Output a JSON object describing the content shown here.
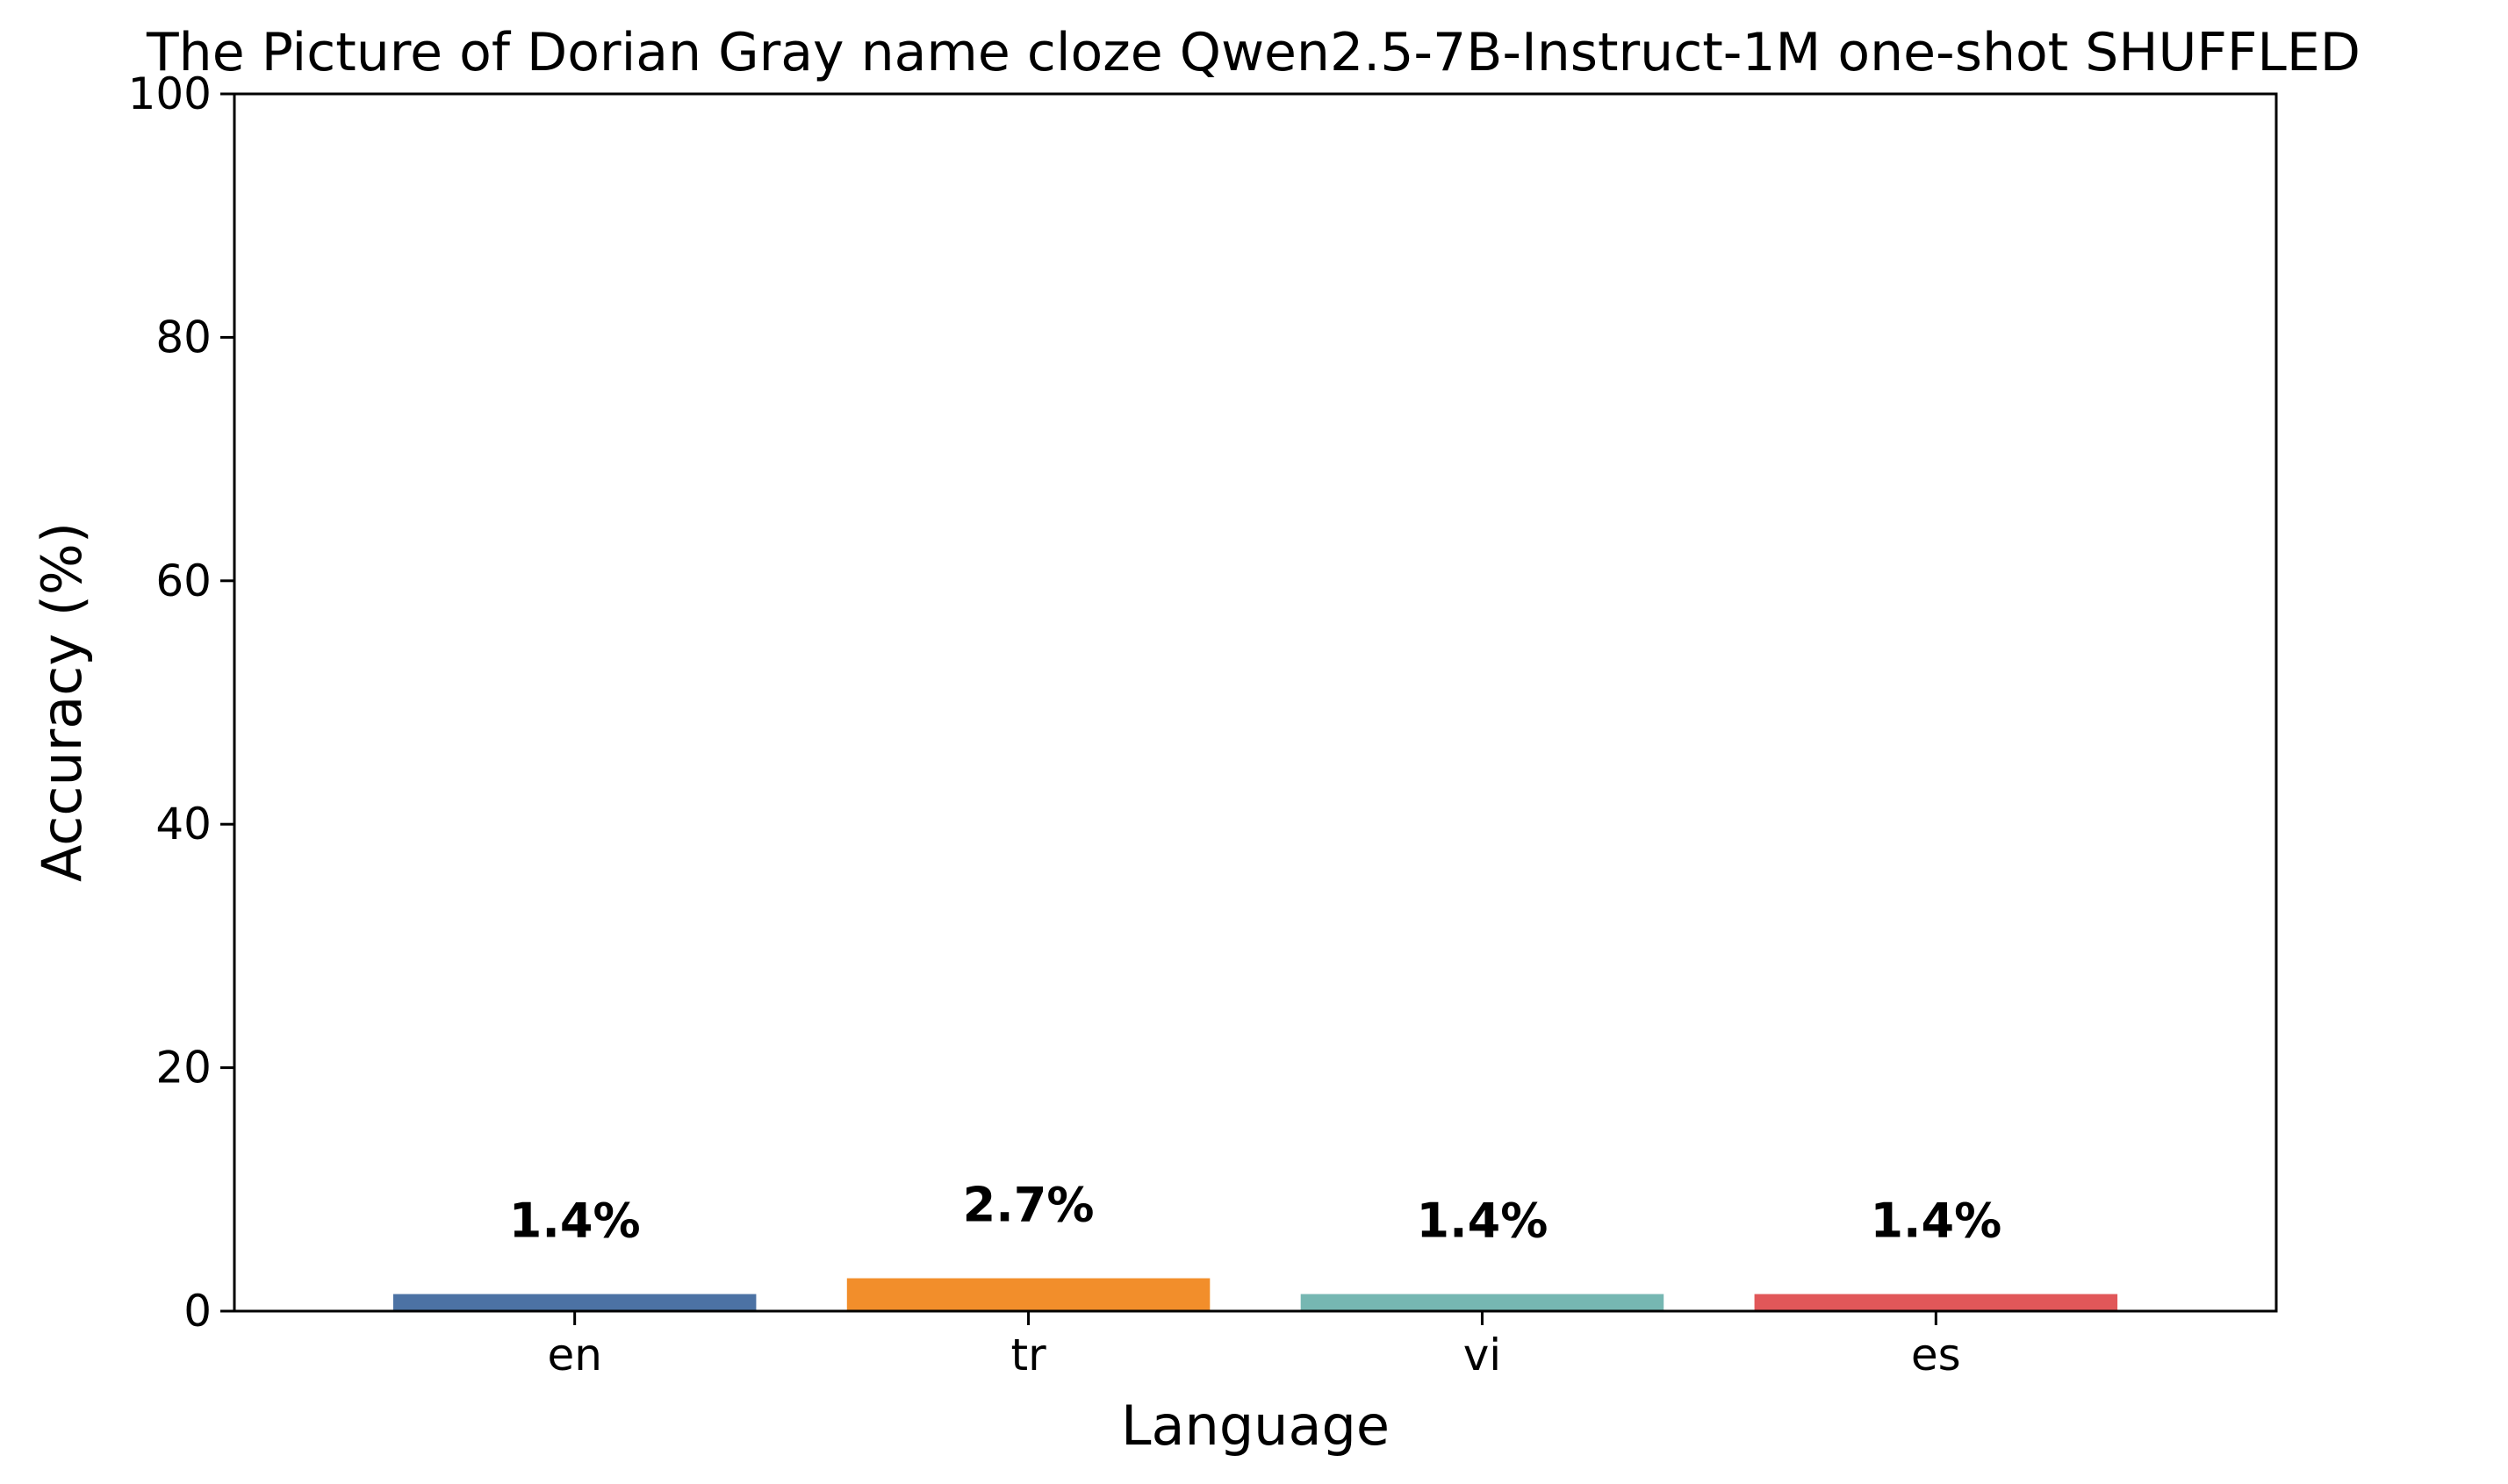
{
  "chart_data": {
    "type": "bar",
    "title": "The Picture of Dorian Gray name cloze Qwen2.5-7B-Instruct-1M one-shot SHUFFLED",
    "xlabel": "Language",
    "ylabel": "Accuracy (%)",
    "categories": [
      "en",
      "tr",
      "vi",
      "es"
    ],
    "values": [
      1.4,
      2.7,
      1.4,
      1.4
    ],
    "value_labels": [
      "1.4%",
      "2.7%",
      "1.4%",
      "1.4%"
    ],
    "colors": [
      "#4c72a4",
      "#f28e2b",
      "#76b7b2",
      "#e15759"
    ],
    "ylim": [
      0,
      100
    ],
    "yticks": [
      0,
      20,
      40,
      60,
      80,
      100
    ],
    "grid": false,
    "legend": null
  }
}
